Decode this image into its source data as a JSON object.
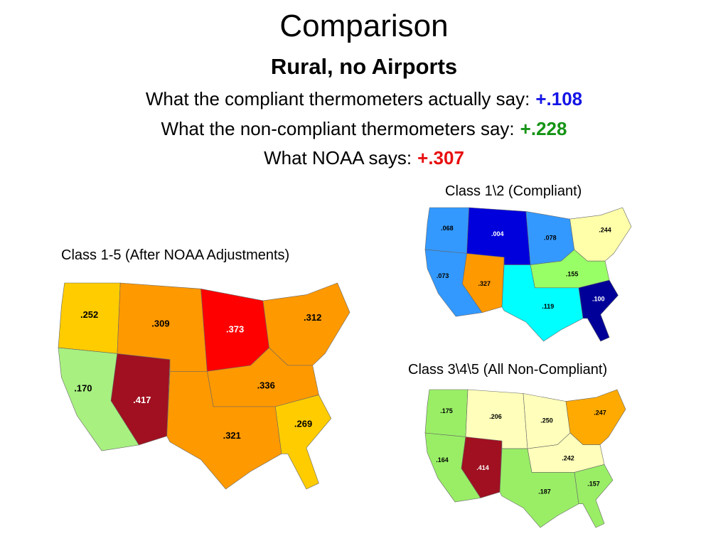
{
  "title": "Comparison",
  "subtitle": "Rural, no Airports",
  "statements": [
    {
      "text": "What the compliant thermometers actually say:",
      "value": "+.108",
      "color": "#1414e6"
    },
    {
      "text": "What the non-compliant thermometers say:",
      "value": "+.228",
      "color": "#169416"
    },
    {
      "text": "What NOAA says:",
      "value": "+.307",
      "color": "#e81010"
    }
  ],
  "maps": [
    {
      "label": "Class 1-5 (After NOAA Adjustments)",
      "regions": [
        {
          "value": ".252",
          "color": "#ffcc00"
        },
        {
          "value": ".170",
          "color": "#a8f080"
        },
        {
          "value": ".417",
          "color": "#a01020"
        },
        {
          "value": ".309",
          "color": "#ff9900"
        },
        {
          "value": ".373",
          "color": "#ff0000"
        },
        {
          "value": ".312",
          "color": "#ff9900"
        },
        {
          "value": ".336",
          "color": "#ff9900"
        },
        {
          "value": ".321",
          "color": "#ff9900"
        },
        {
          "value": ".269",
          "color": "#ffcc00"
        }
      ]
    },
    {
      "label": "Class 1\\2 (Compliant)",
      "regions": [
        {
          "value": ".068",
          "color": "#3399ff"
        },
        {
          "value": ".073",
          "color": "#3399ff"
        },
        {
          "value": ".327",
          "color": "#ff9900"
        },
        {
          "value": ".004",
          "color": "#0000dd"
        },
        {
          "value": ".078",
          "color": "#3399ff"
        },
        {
          "value": ".244",
          "color": "#ffffaa"
        },
        {
          "value": ".155",
          "color": "#99ff66"
        },
        {
          "value": ".119",
          "color": "#00ffff"
        },
        {
          "value": ".100",
          "color": "#000099"
        }
      ]
    },
    {
      "label": "Class 3\\4\\5 (All Non-Compliant)",
      "regions": [
        {
          "value": ".175",
          "color": "#99ee66"
        },
        {
          "value": ".164",
          "color": "#99ee66"
        },
        {
          "value": ".414",
          "color": "#a01020"
        },
        {
          "value": ".206",
          "color": "#ffffbb"
        },
        {
          "value": ".250",
          "color": "#ffffbb"
        },
        {
          "value": ".247",
          "color": "#ffaa00"
        },
        {
          "value": ".242",
          "color": "#ffffbb"
        },
        {
          "value": ".187",
          "color": "#99ee66"
        },
        {
          "value": ".157",
          "color": "#99ee66"
        }
      ]
    }
  ]
}
